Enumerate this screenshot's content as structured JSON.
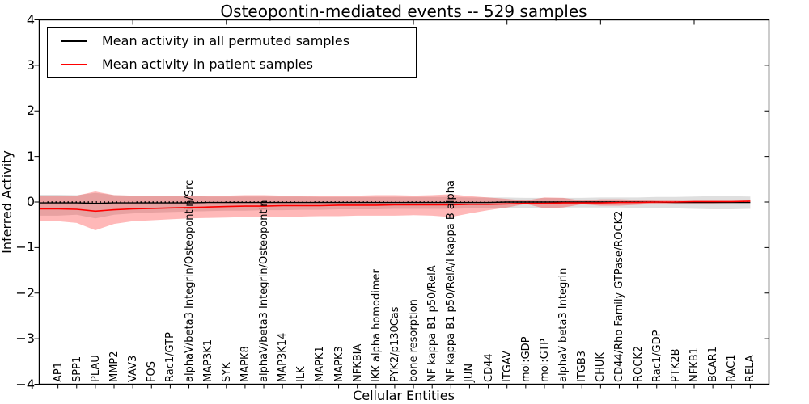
{
  "title": "Osteopontin-mediated events -- 529 samples",
  "chart_data": {
    "type": "line",
    "title": "Osteopontin-mediated events -- 529 samples",
    "xlabel": "Cellular Entities",
    "ylabel": "Inferred Activity",
    "ylim": [
      -4,
      4
    ],
    "grid": false,
    "legend_position": "upper left",
    "ytick_labels": [
      "4",
      "3",
      "2",
      "1",
      "0",
      "−1",
      "−2",
      "−3",
      "−4"
    ],
    "ytick_values": [
      4,
      3,
      2,
      1,
      0,
      -1,
      -2,
      -3,
      -4
    ],
    "colors": {
      "permuted_line": "#000000",
      "patient_line": "#ff0000",
      "permuted_band": "#b8b8b8",
      "patient_band": "#ff0000",
      "axis": "#000000"
    },
    "legend": [
      {
        "label": "Mean activity in all permuted samples",
        "color": "#000000"
      },
      {
        "label": "Mean activity in patient samples",
        "color": "#ff0000"
      }
    ],
    "categories": [
      "AP1",
      "SPP1",
      "PLAU",
      "MMP2",
      "VAV3",
      "FOS",
      "Rac1/GTP",
      "alphaV/beta3 Integrin/Osteopontin/Src",
      "MAP3K1",
      "SYK",
      "MAPK8",
      "alphaV/beta3 Integrin/Osteopontin",
      "MAP3K14",
      "ILK",
      "MAPK1",
      "MAPK3",
      "NFKBIA",
      "IKK alpha homodimer",
      "PYK2/p130Cas",
      "bone resorption",
      "NF kappa B1 p50/RelA",
      "NF kappa B1 p50/RelA/I kappa B alpha",
      "JUN",
      "CD44",
      "ITGAV",
      "mol:GDP",
      "mol:GTP",
      "alphaV beta3 Integrin",
      "ITGB3",
      "CHUK",
      "CD44/Rho Family GTPase/ROCK2",
      "ROCK2",
      "Rac1/GDP",
      "PTK2B",
      "NFKB1",
      "BCAR1",
      "RAC1",
      "RELA"
    ],
    "series": [
      {
        "name": "Mean activity in all permuted samples",
        "color": "#000000",
        "values": [
          -0.02,
          -0.02,
          -0.03,
          -0.02,
          -0.02,
          -0.02,
          -0.02,
          -0.02,
          -0.01,
          -0.01,
          -0.01,
          -0.01,
          -0.01,
          -0.01,
          -0.01,
          -0.01,
          -0.01,
          -0.01,
          -0.01,
          -0.01,
          -0.01,
          -0.01,
          -0.01,
          -0.01,
          0.0,
          0.0,
          0.0,
          0.0,
          0.0,
          0.0,
          0.0,
          0.0,
          0.0,
          -0.01,
          -0.01,
          -0.01,
          -0.01,
          -0.01
        ]
      },
      {
        "name": "Mean activity in patient samples",
        "color": "#ff0000",
        "values": [
          -0.15,
          -0.16,
          -0.2,
          -0.17,
          -0.15,
          -0.14,
          -0.13,
          -0.12,
          -0.11,
          -0.1,
          -0.09,
          -0.09,
          -0.08,
          -0.08,
          -0.08,
          -0.07,
          -0.07,
          -0.07,
          -0.06,
          -0.06,
          -0.06,
          -0.06,
          -0.05,
          -0.05,
          -0.04,
          -0.03,
          -0.03,
          -0.02,
          -0.02,
          -0.02,
          -0.01,
          -0.01,
          0.0,
          0.0,
          0.01,
          0.01,
          0.01,
          0.02
        ]
      }
    ],
    "bands": [
      {
        "name": "permuted-sample-range",
        "color": "#b8b8b8",
        "opacity": 0.45,
        "upper": [
          0.16,
          0.15,
          0.2,
          0.15,
          0.14,
          0.13,
          0.13,
          0.13,
          0.12,
          0.12,
          0.12,
          0.12,
          0.12,
          0.12,
          0.11,
          0.11,
          0.11,
          0.11,
          0.11,
          0.11,
          0.11,
          0.11,
          0.1,
          0.1,
          0.1,
          0.09,
          0.09,
          0.09,
          0.09,
          0.1,
          0.1,
          0.1,
          0.11,
          0.11,
          0.12,
          0.13,
          0.13,
          0.12
        ],
        "lower": [
          -0.3,
          -0.28,
          -0.36,
          -0.28,
          -0.25,
          -0.23,
          -0.22,
          -0.21,
          -0.2,
          -0.19,
          -0.19,
          -0.18,
          -0.18,
          -0.17,
          -0.17,
          -0.16,
          -0.16,
          -0.16,
          -0.15,
          -0.15,
          -0.15,
          -0.15,
          -0.14,
          -0.14,
          -0.13,
          -0.14,
          -0.13,
          -0.12,
          -0.12,
          -0.12,
          -0.12,
          -0.13,
          -0.13,
          -0.14,
          -0.15,
          -0.16,
          -0.16,
          -0.15
        ]
      },
      {
        "name": "patient-sample-range",
        "color": "#ff0000",
        "opacity": 0.28,
        "upper": [
          0.13,
          0.14,
          0.23,
          0.15,
          0.14,
          0.14,
          0.14,
          0.14,
          0.14,
          0.14,
          0.15,
          0.15,
          0.14,
          0.14,
          0.14,
          0.14,
          0.14,
          0.15,
          0.15,
          0.14,
          0.15,
          0.17,
          0.13,
          0.1,
          0.07,
          0.03,
          0.1,
          0.09,
          0.03,
          0.06,
          0.06,
          0.05,
          0.03,
          0.03,
          0.02,
          0.02,
          0.02,
          0.02
        ],
        "lower": [
          -0.42,
          -0.46,
          -0.62,
          -0.48,
          -0.42,
          -0.4,
          -0.38,
          -0.36,
          -0.35,
          -0.34,
          -0.33,
          -0.33,
          -0.32,
          -0.32,
          -0.31,
          -0.31,
          -0.3,
          -0.3,
          -0.3,
          -0.29,
          -0.3,
          -0.33,
          -0.25,
          -0.18,
          -0.12,
          -0.04,
          -0.14,
          -0.12,
          -0.05,
          -0.08,
          -0.08,
          -0.06,
          -0.04,
          -0.03,
          -0.03,
          -0.03,
          -0.02,
          -0.02
        ]
      }
    ],
    "zero_line": 0
  }
}
